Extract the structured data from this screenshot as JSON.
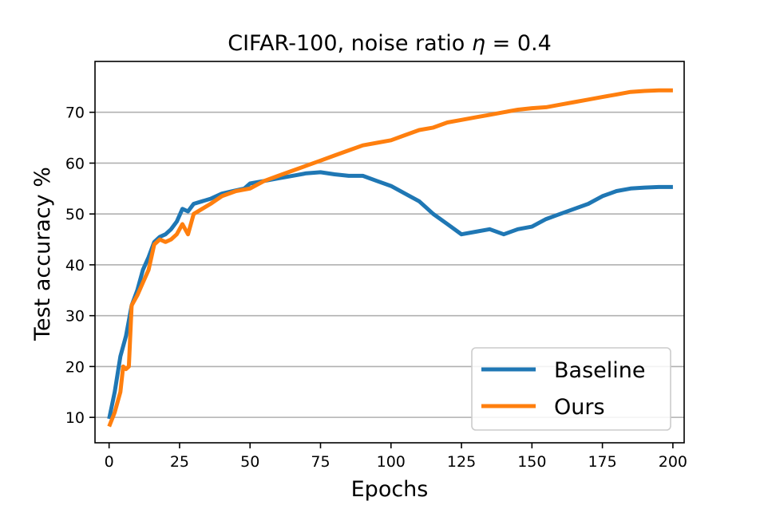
{
  "chart_data": {
    "type": "line",
    "title": "CIFAR-100, noise ratio η = 0.4",
    "title_parts": {
      "main": "CIFAR-100, noise ratio ",
      "symbol": "η",
      "rest": " = 0.4"
    },
    "xlabel": "Epochs",
    "ylabel": "Test accuracy %",
    "xlim": [
      -5,
      204
    ],
    "ylim": [
      5,
      80
    ],
    "xticks": [
      0,
      25,
      50,
      75,
      100,
      125,
      150,
      175,
      200
    ],
    "yticks": [
      10,
      20,
      30,
      40,
      50,
      60,
      70
    ],
    "grid": "horizontal",
    "legend_position": "bottom-right",
    "series": [
      {
        "name": "Baseline",
        "color": "#1f77b4",
        "x": [
          0,
          2,
          4,
          6,
          8,
          10,
          12,
          14,
          16,
          18,
          20,
          22,
          24,
          26,
          28,
          30,
          33,
          36,
          40,
          44,
          48,
          50,
          55,
          60,
          65,
          70,
          75,
          80,
          85,
          90,
          95,
          100,
          105,
          110,
          115,
          120,
          125,
          130,
          135,
          140,
          145,
          150,
          155,
          160,
          165,
          170,
          175,
          180,
          185,
          190,
          195,
          200
        ],
        "values": [
          9.7,
          15.0,
          22.0,
          26.0,
          32.0,
          35.0,
          39.0,
          41.5,
          44.5,
          45.5,
          46.0,
          47.0,
          48.5,
          51.0,
          50.5,
          52.0,
          52.5,
          53.0,
          54.0,
          54.5,
          55.0,
          56.0,
          56.5,
          57.0,
          57.5,
          58.0,
          58.2,
          57.8,
          57.5,
          57.5,
          56.5,
          55.5,
          54.0,
          52.5,
          50.0,
          48.0,
          46.0,
          46.5,
          47.0,
          46.0,
          47.0,
          47.5,
          49.0,
          50.0,
          51.0,
          52.0,
          53.5,
          54.5,
          55.0,
          55.2,
          55.3,
          55.3
        ]
      },
      {
        "name": "Ours",
        "color": "#ff7f0e",
        "x": [
          0,
          2,
          4,
          5,
          6,
          7,
          8,
          10,
          12,
          14,
          16,
          18,
          20,
          22,
          24,
          26,
          28,
          30,
          33,
          36,
          40,
          45,
          50,
          55,
          60,
          65,
          70,
          75,
          80,
          85,
          90,
          95,
          100,
          105,
          110,
          115,
          120,
          125,
          130,
          135,
          140,
          145,
          150,
          155,
          160,
          165,
          170,
          175,
          180,
          185,
          190,
          195,
          200
        ],
        "values": [
          8.2,
          11.0,
          15.0,
          20.0,
          19.5,
          20.0,
          32.0,
          34.0,
          36.5,
          39.0,
          44.0,
          45.0,
          44.5,
          45.0,
          46.0,
          48.0,
          46.0,
          50.0,
          51.0,
          52.0,
          53.5,
          54.5,
          55.0,
          56.5,
          57.5,
          58.5,
          59.5,
          60.5,
          61.5,
          62.5,
          63.5,
          64.0,
          64.5,
          65.5,
          66.5,
          67.0,
          68.0,
          68.5,
          69.0,
          69.5,
          70.0,
          70.5,
          70.8,
          71.0,
          71.5,
          72.0,
          72.5,
          73.0,
          73.5,
          74.0,
          74.2,
          74.3,
          74.3
        ]
      }
    ]
  }
}
